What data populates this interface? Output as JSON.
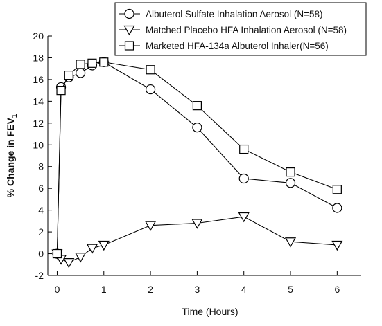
{
  "chart_data": {
    "type": "line",
    "xlabel": "Time (Hours)",
    "ylabel": {
      "main": "% Change in FEV",
      "subscript": "1"
    },
    "xlim": [
      -0.2,
      6.5
    ],
    "ylim": [
      -2,
      20
    ],
    "xticks": [
      0,
      1,
      2,
      3,
      4,
      5,
      6
    ],
    "yticks": [
      -2,
      0,
      2,
      4,
      6,
      8,
      10,
      12,
      14,
      16,
      18,
      20
    ],
    "grid": false,
    "legend_position": "top-right",
    "series": [
      {
        "name": "Albuterol Sulfate Inhalation Aerosol (N=58)",
        "marker": "circle",
        "x": [
          0,
          0.083,
          0.25,
          0.5,
          0.75,
          1,
          2,
          3,
          4,
          5,
          6
        ],
        "values": [
          0,
          15.3,
          16.2,
          16.6,
          17.3,
          17.6,
          15.1,
          11.6,
          6.9,
          6.5,
          4.2
        ]
      },
      {
        "name": "Matched Placebo HFA Inhalation Aerosol (N=58)",
        "marker": "triangle-down",
        "x": [
          0,
          0.083,
          0.25,
          0.5,
          0.75,
          1,
          2,
          3,
          4,
          5,
          6
        ],
        "values": [
          0,
          -0.5,
          -0.8,
          -0.3,
          0.5,
          0.8,
          2.6,
          2.8,
          3.4,
          1.1,
          0.8
        ]
      },
      {
        "name": "Marketed HFA-134a Albuterol Inhaler(N=56)",
        "marker": "square",
        "x": [
          0,
          0.083,
          0.25,
          0.5,
          0.75,
          1,
          2,
          3,
          4,
          5,
          6
        ],
        "values": [
          0,
          15.0,
          16.4,
          17.4,
          17.5,
          17.6,
          16.9,
          13.6,
          9.6,
          7.5,
          5.9
        ]
      }
    ]
  }
}
